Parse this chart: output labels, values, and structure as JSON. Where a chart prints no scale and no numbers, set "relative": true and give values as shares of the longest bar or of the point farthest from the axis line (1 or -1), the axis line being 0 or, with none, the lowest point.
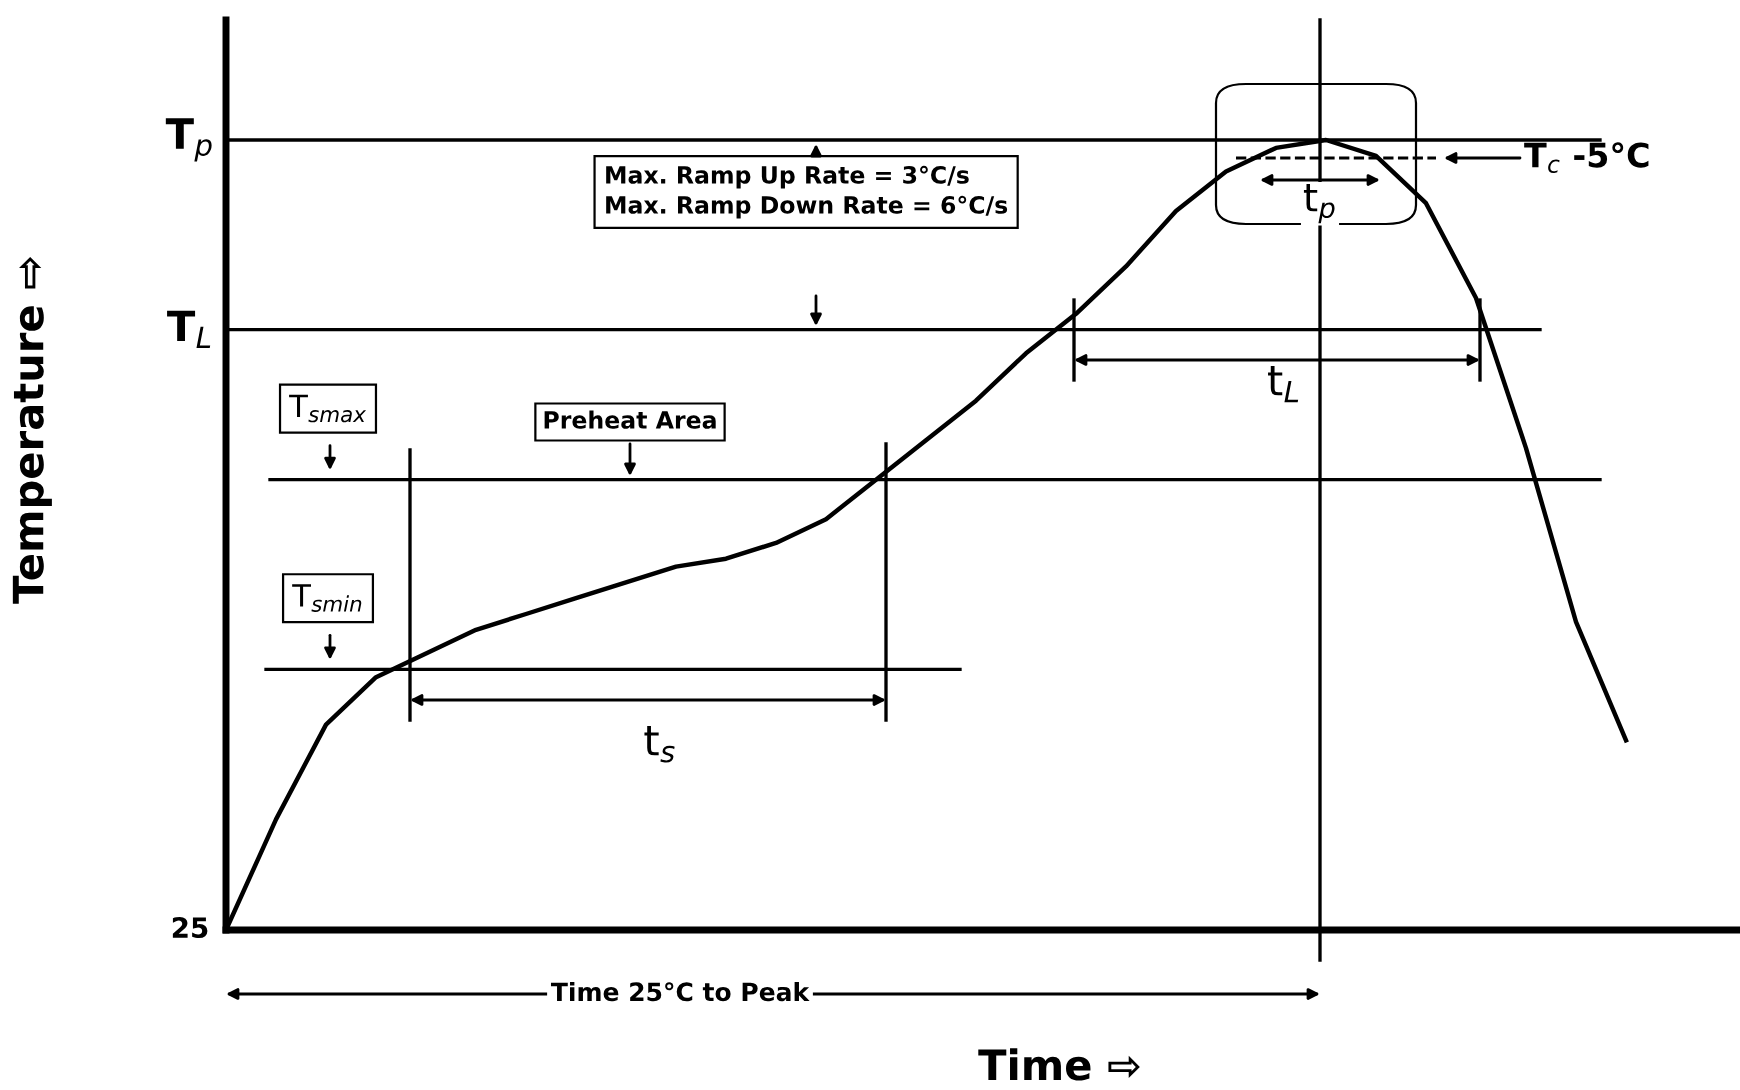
{
  "chart_data": {
    "type": "line",
    "relative": true,
    "xlabel": "Time ⇨",
    "ylabel": "Temperature ⇨",
    "categories": [
      null,
      null,
      null,
      null,
      null,
      null,
      null,
      null,
      null,
      null,
      null,
      null,
      null,
      null,
      null,
      null,
      null,
      null,
      null,
      null,
      null,
      null,
      null,
      null,
      null,
      null,
      null,
      null,
      null
    ],
    "series": [
      {
        "color": "#000000",
        "values": [
          0,
          0.14,
          0.26,
          0.32,
          0.35,
          0.38,
          0.4,
          0.42,
          0.44,
          0.46,
          0.47,
          0.49,
          0.52,
          0.57,
          0.62,
          0.67,
          0.73,
          0.78,
          0.84,
          0.91,
          0.96,
          0.99,
          1.0,
          0.98,
          0.92,
          0.8,
          0.61,
          0.39,
          0.24
        ]
      }
    ],
    "line_style": "solid",
    "ref_lines": [
      {
        "axis": "y",
        "value": 1.0,
        "label": "T$_{p}$"
      },
      {
        "axis": "y",
        "value": 0.76,
        "label": "T$_{L}$"
      },
      {
        "axis": "y",
        "value": 0.57,
        "label": "T$_{smax}$"
      },
      {
        "axis": "y",
        "value": 0.33,
        "label": "T$_{smin}$"
      }
    ],
    "annotations": [
      "Max. Ramp Up Rate = 3°C/s\nMax. Ramp Down Rate = 6°C/s",
      "Preheat Area",
      "t$_{s}$",
      "t$_{L}$",
      "t$_{p}$",
      "T$_{c}$ -5°C",
      "Time 25°C to Peak",
      "25"
    ]
  }
}
